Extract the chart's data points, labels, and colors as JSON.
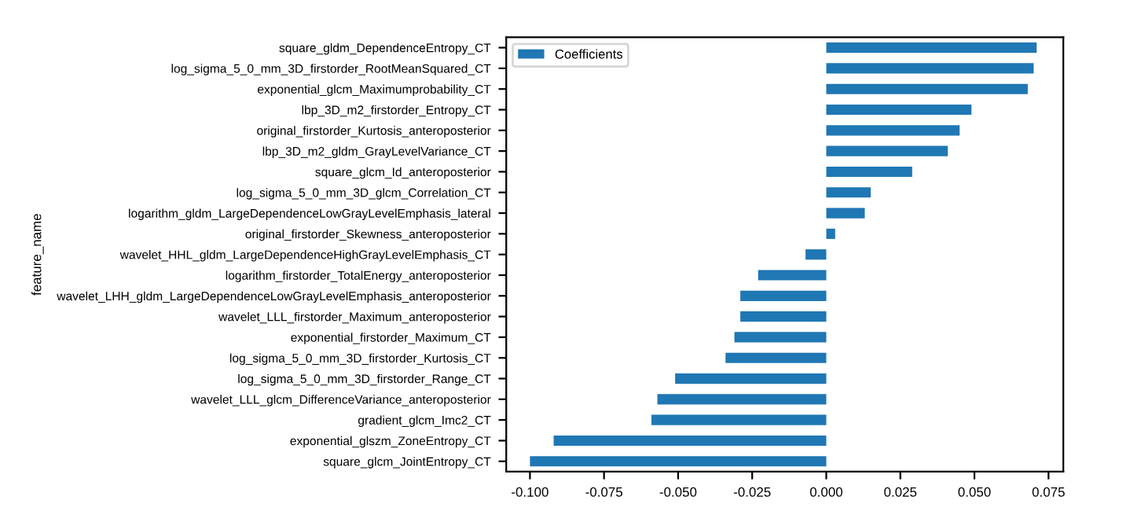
{
  "chart_data": {
    "type": "bar",
    "orientation": "horizontal",
    "ylabel": "feature_name",
    "categories": [
      "square_gldm_DependenceEntropy_CT",
      "log_sigma_5_0_mm_3D_firstorder_RootMeanSquared_CT",
      "exponential_glcm_Maximumprobability_CT",
      "lbp_3D_m2_firstorder_Entropy_CT",
      "original_firstorder_Kurtosis_anteroposterior",
      "lbp_3D_m2_gldm_GrayLevelVariance_CT",
      "square_glcm_Id_anteroposterior",
      "log_sigma_5_0_mm_3D_glcm_Correlation_CT",
      "logarithm_gldm_LargeDependenceLowGrayLevelEmphasis_lateral",
      "original_firstorder_Skewness_anteroposterior",
      "wavelet_HHL_gldm_LargeDependenceHighGrayLevelEmphasis_CT",
      "logarithm_firstorder_TotalEnergy_anteroposterior",
      "wavelet_LHH_gldm_LargeDependenceLowGrayLevelEmphasis_anteroposterior",
      "wavelet_LLL_firstorder_Maximum_anteroposterior",
      "exponential_firstorder_Maximum_CT",
      "log_sigma_5_0_mm_3D_firstorder_Kurtosis_CT",
      "log_sigma_5_0_mm_3D_firstorder_Range_CT",
      "wavelet_LLL_glcm_DifferenceVariance_anteroposterior",
      "gradient_glcm_Imc2_CT",
      "exponential_glszm_ZoneEntropy_CT",
      "square_glcm_JointEntropy_CT"
    ],
    "series": [
      {
        "name": "Coefficients",
        "color": "#1f77b4",
        "values": [
          0.071,
          0.07,
          0.068,
          0.049,
          0.045,
          0.041,
          0.029,
          0.015,
          0.013,
          0.003,
          -0.007,
          -0.023,
          -0.029,
          -0.029,
          -0.031,
          -0.034,
          -0.051,
          -0.057,
          -0.059,
          -0.092,
          -0.1
        ]
      }
    ],
    "xlim": [
      -0.108,
      0.08
    ],
    "xticks": [
      {
        "value": -0.1,
        "label": "-0.100"
      },
      {
        "value": -0.075,
        "label": "-0.075"
      },
      {
        "value": -0.05,
        "label": "-0.050"
      },
      {
        "value": -0.025,
        "label": "-0.025"
      },
      {
        "value": 0,
        "label": "0.000"
      },
      {
        "value": 0.025,
        "label": "0.025"
      },
      {
        "value": 0.05,
        "label": "0.050"
      },
      {
        "value": 0.075,
        "label": "0.075"
      }
    ],
    "legend": "top left",
    "grid": false
  }
}
